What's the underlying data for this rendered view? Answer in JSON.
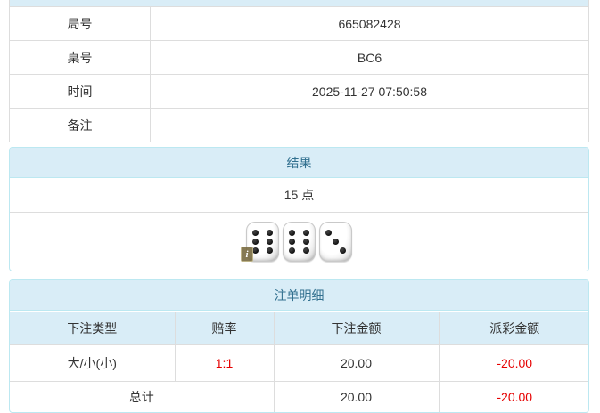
{
  "colors": {
    "panel_bg": "#d9edf7",
    "panel_border": "#bce8f1",
    "panel_title_text": "#31708f",
    "cell_border": "#dddddd",
    "body_text": "#333333",
    "negative_text": "#e60000"
  },
  "info_table": {
    "rows": [
      {
        "label": "局号",
        "value": "665082428"
      },
      {
        "label": "桌号",
        "value": "BC6"
      },
      {
        "label": "时间",
        "value": "2025-11-27 07:50:58"
      },
      {
        "label": "备注",
        "value": ""
      }
    ]
  },
  "result_panel": {
    "title": "结果",
    "points": "15 点",
    "dice": [
      6,
      6,
      3
    ],
    "badge_text": "i",
    "badge_on_die": 0
  },
  "bets_panel": {
    "title": "注单明细",
    "columns": [
      "下注类型",
      "赔率",
      "下注金额",
      "派彩金额"
    ],
    "rows": [
      {
        "type": "大/小(小)",
        "odds": "1:1",
        "bet": "20.00",
        "payout": "-20.00"
      }
    ],
    "total": {
      "label": "总计",
      "bet": "20.00",
      "payout": "-20.00"
    }
  }
}
